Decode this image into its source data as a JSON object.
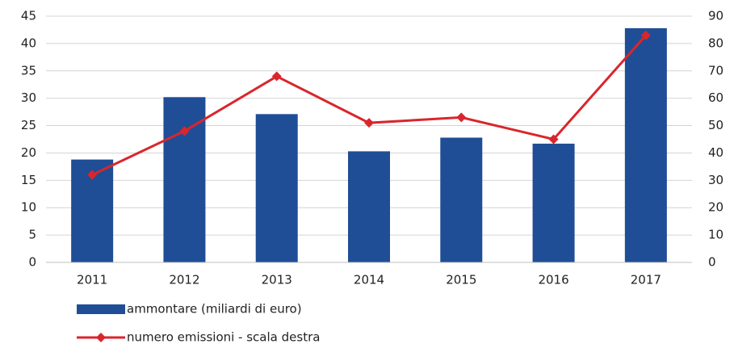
{
  "chart_data": {
    "type": "bar",
    "categories": [
      "2011",
      "2012",
      "2013",
      "2014",
      "2015",
      "2016",
      "2017"
    ],
    "series": [
      {
        "name": "ammontare (miliardi di euro)",
        "type": "bar",
        "color": "#1f4e96",
        "values": [
          18.8,
          30.2,
          27.1,
          20.3,
          22.8,
          21.7,
          42.8
        ]
      },
      {
        "name": "numero emissioni - scala destra",
        "type": "line",
        "axis": "y2",
        "color": "#d9262c",
        "values": [
          32,
          48,
          68,
          51,
          53,
          45,
          83
        ]
      }
    ],
    "ylim": [
      0,
      45
    ],
    "yticks": [
      0,
      5,
      10,
      15,
      20,
      25,
      30,
      35,
      40,
      45
    ],
    "y2lim": [
      0,
      90
    ],
    "y2ticks": [
      0,
      10,
      20,
      30,
      40,
      50,
      60,
      70,
      80,
      90
    ],
    "grid": true,
    "legend": "bottom-left"
  }
}
